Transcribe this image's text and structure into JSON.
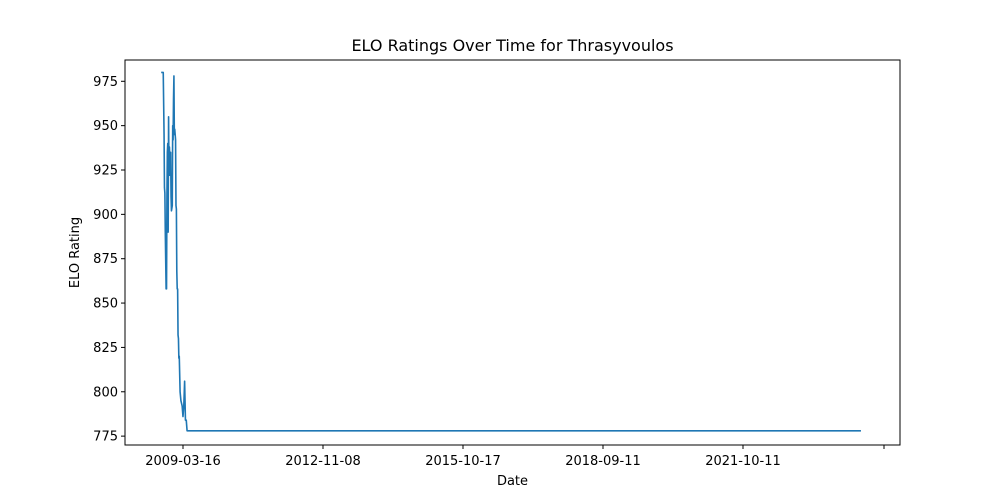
{
  "chart_data": {
    "type": "line",
    "title": "ELO Ratings Over Time for Thrasyvoulos",
    "xlabel": "Date",
    "ylabel": "ELO Rating",
    "x_ticks": [
      "2009-03-16",
      "2012-11-08",
      "2015-10-17",
      "2018-09-11",
      "2021-10-11",
      ""
    ],
    "y_ticks": [
      "775",
      "800",
      "825",
      "850",
      "875",
      "900",
      "925",
      "950",
      "975"
    ],
    "xlim": [
      2007.35,
      2026.2
    ],
    "ylim": [
      770,
      987
    ],
    "grid": false,
    "legend": "none",
    "series": [
      {
        "color": "#1f77b4",
        "x": [
          2008.23,
          2008.28,
          2008.3,
          2008.31,
          2008.32,
          2008.33,
          2008.35,
          2008.36,
          2008.37,
          2008.38,
          2008.39,
          2008.4,
          2008.41,
          2008.42,
          2008.43,
          2008.44,
          2008.45,
          2008.46,
          2008.47,
          2008.48,
          2008.5,
          2008.51,
          2008.52,
          2008.53,
          2008.54,
          2008.55,
          2008.56,
          2008.58,
          2008.59,
          2008.6,
          2008.61,
          2008.62,
          2008.63,
          2008.64,
          2008.65,
          2008.66,
          2008.67,
          2008.69,
          2008.71,
          2008.74,
          2008.76,
          2008.78,
          2008.8,
          2008.82,
          2008.84,
          2008.86,
          2008.88,
          2008.9,
          2008.92,
          2008.94,
          2008.96,
          2008.98,
          2009.0,
          2009.02,
          2009.04,
          2009.07,
          2009.1,
          2009.15,
          2009.25,
          2012.0,
          2016.0,
          2020.0,
          2024.0,
          2025.25
        ],
        "y": [
          980,
          980,
          945,
          915,
          912,
          890,
          858,
          858,
          910,
          935,
          940,
          890,
          955,
          922,
          938,
          932,
          922,
          935,
          910,
          902,
          905,
          950,
          942,
          965,
          978,
          945,
          948,
          942,
          905,
          903,
          868,
          858,
          858,
          832,
          830,
          819,
          820,
          800,
          795,
          792,
          786,
          792,
          806,
          784,
          784,
          778,
          778,
          778,
          778,
          778,
          778,
          778,
          778,
          778,
          778,
          778,
          778,
          778,
          778,
          778,
          778,
          778,
          778,
          778
        ]
      }
    ]
  }
}
